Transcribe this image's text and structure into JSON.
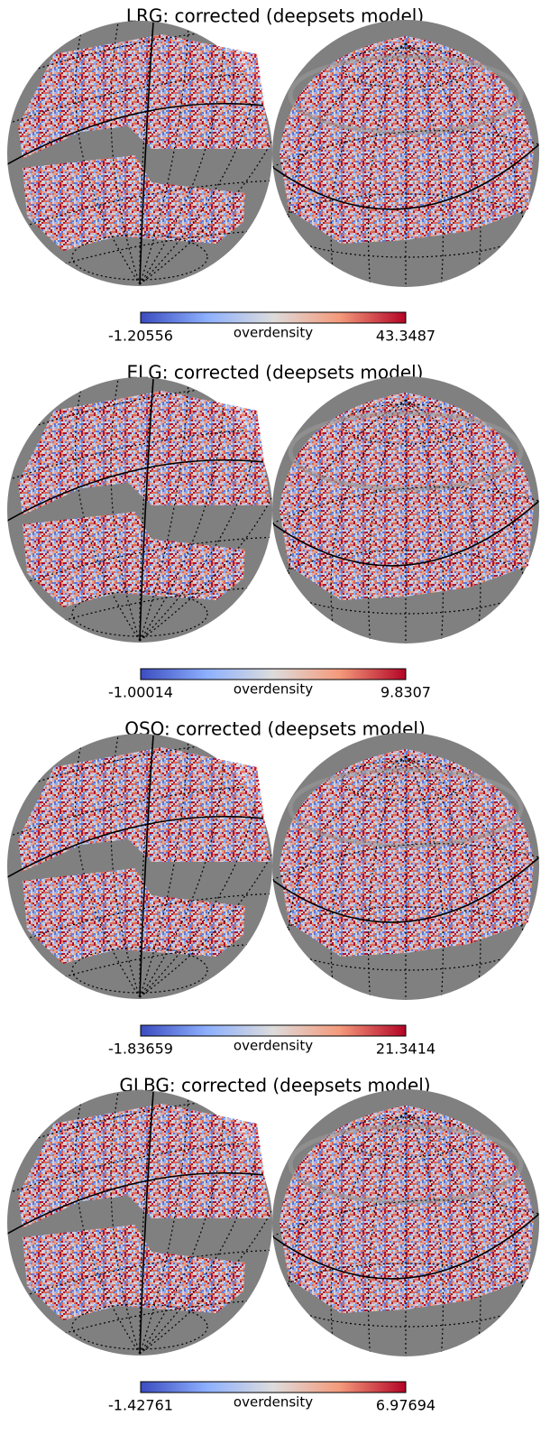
{
  "panels": [
    {
      "title": "LRG: corrected (deepsets model)",
      "colorbar": {
        "min": -1.20556,
        "label": "overdensity",
        "max": 43.3487
      }
    },
    {
      "title": "ELG: corrected (deepsets model)",
      "colorbar": {
        "min": -1.00014,
        "label": "overdensity",
        "max": 9.8307
      }
    },
    {
      "title": "QSO: corrected (deepsets model)",
      "colorbar": {
        "min": -1.83659,
        "label": "overdensity",
        "max": 21.3414
      }
    },
    {
      "title": "GLBG: corrected (deepsets model)",
      "colorbar": {
        "min": -1.42761,
        "label": "overdensity",
        "max": 6.97694
      }
    }
  ]
}
